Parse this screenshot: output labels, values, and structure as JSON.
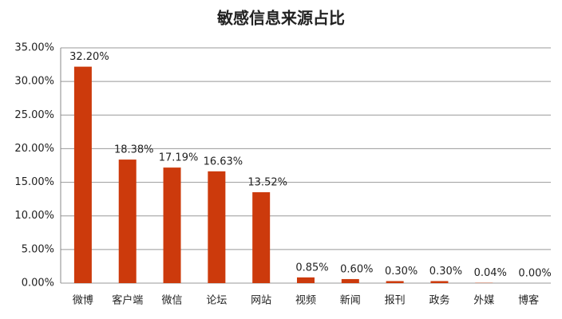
{
  "chart_data": {
    "type": "bar",
    "title": "敏感信息来源占比",
    "categories": [
      "微博",
      "客户端",
      "微信",
      "论坛",
      "网站",
      "视频",
      "新闻",
      "报刊",
      "政务",
      "外媒",
      "博客"
    ],
    "values": [
      32.2,
      18.38,
      17.19,
      16.63,
      13.52,
      0.85,
      0.6,
      0.3,
      0.3,
      0.04,
      0.0
    ],
    "value_labels": [
      "32.20%",
      "18.38%",
      "17.19%",
      "16.63%",
      "13.52%",
      "0.85%",
      "0.60%",
      "0.30%",
      "0.30%",
      "0.04%",
      "0.00%"
    ],
    "color": "#cc3a0c",
    "ylim": [
      0,
      35
    ],
    "yticks": [
      {
        "value": 0,
        "label": "0.00%"
      },
      {
        "value": 5,
        "label": "5.00%"
      },
      {
        "value": 10,
        "label": "10.00%"
      },
      {
        "value": 15,
        "label": "15.00%"
      },
      {
        "value": 20,
        "label": "20.00%"
      },
      {
        "value": 25,
        "label": "25.00%"
      },
      {
        "value": 30,
        "label": "30.00%"
      },
      {
        "value": 35,
        "label": "35.00%"
      }
    ],
    "grid": true
  }
}
